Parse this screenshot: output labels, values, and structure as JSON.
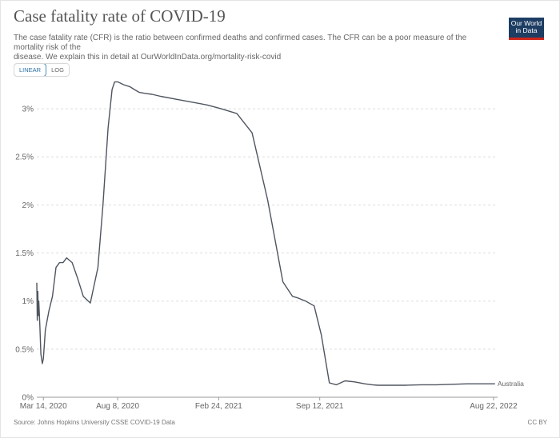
{
  "header": {
    "title": "Case fatality rate of COVID-19",
    "subtitle_line1": "The case fatality rate (CFR) is the ratio between confirmed deaths and confirmed cases. The CFR can be a poor measure of the mortality risk of the",
    "subtitle_line2": "disease. We explain this in detail at OurWorldInData.org/mortality-risk-covid",
    "logo_line1": "Our World",
    "logo_line2": "in Data"
  },
  "controls": {
    "linear_label": "LINEAR",
    "log_label": "LOG",
    "active": "LINEAR"
  },
  "footer": {
    "source": "Source: Johns Hopkins University CSSE COVID-19 Data",
    "license": "CC BY"
  },
  "colors": {
    "line": "#4f5560",
    "grid": "#dddddd",
    "axis_text": "#666666",
    "logo_bg": "#1d3d63",
    "logo_accent": "#ce261e"
  },
  "chart_data": {
    "type": "line",
    "title": "Case fatality rate of COVID-19",
    "xlabel": "",
    "ylabel": "",
    "y_unit": "%",
    "x_ticks": [
      "Mar 14, 2020",
      "Aug 8, 2020",
      "Feb 24, 2021",
      "Sep 12, 2021",
      "Aug 22, 2022"
    ],
    "y_ticks": [
      "0%",
      "0.5%",
      "1%",
      "1.5%",
      "2%",
      "2.5%",
      "3%"
    ],
    "y_tick_values": [
      0,
      0.5,
      1,
      1.5,
      2,
      2.5,
      3
    ],
    "ylim": [
      0,
      3.3
    ],
    "xlim": [
      "2020-03-01",
      "2022-08-30"
    ],
    "grid": true,
    "legend": "inline-end",
    "series": [
      {
        "name": "Australia",
        "x": [
          "2020-03-01",
          "2020-03-02",
          "2020-03-03",
          "2020-03-04",
          "2020-03-05",
          "2020-03-07",
          "2020-03-09",
          "2020-03-12",
          "2020-03-14",
          "2020-03-18",
          "2020-03-25",
          "2020-04-01",
          "2020-04-08",
          "2020-04-15",
          "2020-04-22",
          "2020-04-29",
          "2020-05-10",
          "2020-05-20",
          "2020-06-01",
          "2020-06-15",
          "2020-06-30",
          "2020-07-10",
          "2020-07-20",
          "2020-07-28",
          "2020-08-02",
          "2020-08-08",
          "2020-08-20",
          "2020-09-01",
          "2020-09-10",
          "2020-09-20",
          "2020-10-01",
          "2020-10-15",
          "2020-11-01",
          "2020-12-01",
          "2021-01-01",
          "2021-02-01",
          "2021-03-01",
          "2021-04-01",
          "2021-05-01",
          "2021-06-01",
          "2021-07-01",
          "2021-07-20",
          "2021-08-01",
          "2021-08-15",
          "2021-09-01",
          "2021-09-15",
          "2021-10-01",
          "2021-10-15",
          "2021-11-01",
          "2021-11-20",
          "2021-12-10",
          "2021-12-25",
          "2022-01-05",
          "2022-01-15",
          "2022-02-01",
          "2022-03-01",
          "2022-04-01",
          "2022-05-01",
          "2022-06-01",
          "2022-07-01",
          "2022-08-01",
          "2022-08-25"
        ],
        "values": [
          1.19,
          0.8,
          1.1,
          0.85,
          1.0,
          0.75,
          0.45,
          0.35,
          0.4,
          0.7,
          0.9,
          1.05,
          1.35,
          1.4,
          1.4,
          1.45,
          1.4,
          1.25,
          1.05,
          0.98,
          1.35,
          2.0,
          2.8,
          3.2,
          3.28,
          3.28,
          3.25,
          3.23,
          3.2,
          3.17,
          3.16,
          3.15,
          3.13,
          3.1,
          3.07,
          3.04,
          3.0,
          2.95,
          2.75,
          2.05,
          1.2,
          1.05,
          1.03,
          1.0,
          0.95,
          0.65,
          0.15,
          0.13,
          0.17,
          0.16,
          0.14,
          0.13,
          0.125,
          0.125,
          0.125,
          0.125,
          0.13,
          0.13,
          0.135,
          0.14,
          0.14,
          0.14
        ]
      }
    ]
  }
}
